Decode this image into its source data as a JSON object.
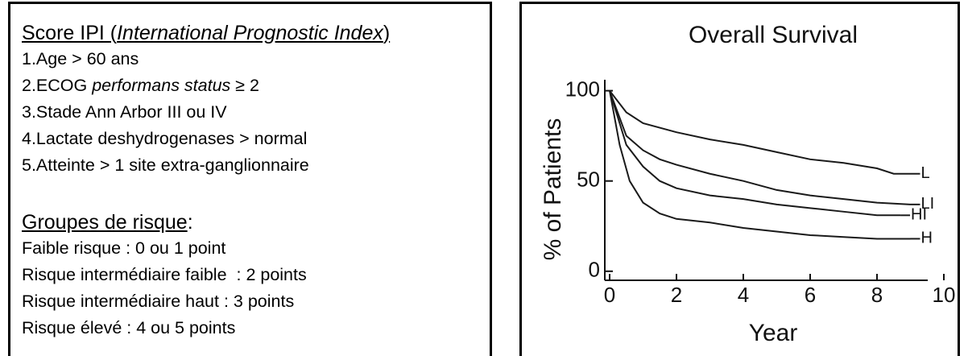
{
  "text_panel": {
    "title": [
      {
        "text": "Score IPI ("
      },
      {
        "text": "International Prognostic Index",
        "italic": true
      },
      {
        "text": ")"
      }
    ],
    "criteria": [
      [
        {
          "text": "1.Age > 60 ans"
        }
      ],
      [
        {
          "text": "2.ECOG "
        },
        {
          "text": "performans status",
          "italic": true
        },
        {
          "text": " ≥ 2"
        }
      ],
      [
        {
          "text": "3.Stade Ann Arbor III ou IV"
        }
      ],
      [
        {
          "text": "4.Lactate deshydrogenases > normal"
        }
      ],
      [
        {
          "text": "5.Atteinte > 1 site extra-ganglionnaire"
        }
      ]
    ],
    "groups_title": "Groupes de risque",
    "groups_title_suffix": " :",
    "groups": [
      "Faible risque : 0 ou 1 point",
      "Risque intermédiaire faible  : 2 points",
      "Risque intermédiaire haut : 3 points",
      "Risque élevé : 4 ou 5 points"
    ]
  },
  "chart_data": {
    "type": "line",
    "title": "Overall Survival",
    "x_label": "Year",
    "y_label": "% of Patients",
    "xlim": [
      0,
      10
    ],
    "ylim": [
      -5,
      115
    ],
    "xticks": [
      0,
      2,
      4,
      6,
      8,
      10
    ],
    "yticks": [
      0,
      50,
      100
    ],
    "series": [
      {
        "name": "L",
        "color": "#1a1a1a",
        "x": [
          0,
          0.5,
          1,
          2,
          3,
          4,
          5,
          6,
          7,
          8,
          8.5,
          9
        ],
        "values": [
          100,
          88,
          82,
          77,
          73,
          70,
          66,
          62,
          60,
          57,
          54,
          54
        ]
      },
      {
        "name": "LI",
        "color": "#1a1a1a",
        "x": [
          0,
          0.5,
          1,
          1.5,
          2,
          3,
          4,
          5,
          6,
          7,
          8,
          9
        ],
        "values": [
          100,
          75,
          67,
          62,
          59,
          54,
          50,
          45,
          42,
          40,
          38,
          37
        ]
      },
      {
        "name": "HI",
        "color": "#1a1a1a",
        "x": [
          0,
          0.5,
          1,
          1.5,
          2,
          3,
          4,
          5,
          6,
          7,
          8,
          8.7
        ],
        "values": [
          100,
          70,
          58,
          50,
          46,
          42,
          40,
          37,
          35,
          33,
          31,
          31
        ]
      },
      {
        "name": "H",
        "color": "#1a1a1a",
        "x": [
          0,
          0.3,
          0.6,
          1,
          1.5,
          2,
          3,
          4,
          5,
          6,
          7,
          8,
          9
        ],
        "values": [
          100,
          70,
          50,
          38,
          32,
          29,
          27,
          24,
          22,
          20,
          19,
          18,
          18
        ]
      }
    ]
  }
}
